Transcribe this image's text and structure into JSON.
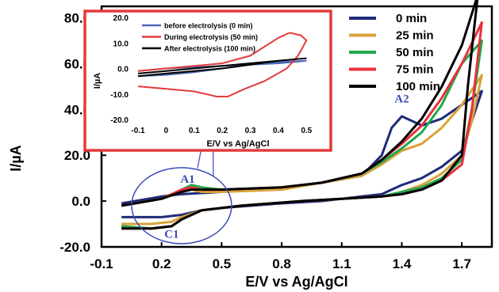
{
  "colors": {
    "black": "#000000",
    "blue": "#1f2a78",
    "orange": "#d9a23a",
    "green": "#1fa84f",
    "red": "#e8313a",
    "annotation": "#3c4bb8",
    "inset_border": "#e33b3b",
    "inset_blue": "#4a67b4",
    "inset_red": "#e33b3b"
  },
  "chart_data": [
    {
      "type": "line",
      "xlabel": "E/V vs Ag/AgCl",
      "ylabel": "I/µA",
      "xlim": [
        -0.1,
        1.85
      ],
      "ylim": [
        -20,
        85
      ],
      "xticks": [
        "-0.1",
        "0.2",
        "0.5",
        "0.8",
        "1.1",
        "1.4",
        "1.7"
      ],
      "yticks": [
        "-20.0",
        "0.0",
        "20.0",
        "40.0",
        "60.0",
        "80.0"
      ],
      "legend_position": "top-right",
      "annotations": [
        {
          "text": "A1",
          "x": 0.33,
          "y": 8
        },
        {
          "text": "C1",
          "x": 0.25,
          "y": -16
        },
        {
          "text": "A2",
          "x": 1.4,
          "y": 43
        }
      ],
      "series": [
        {
          "name": "0 min",
          "color": "blue",
          "forward": [
            [
              0.0,
              -1
            ],
            [
              0.2,
              2
            ],
            [
              0.3,
              3
            ],
            [
              0.5,
              4
            ],
            [
              0.8,
              6
            ],
            [
              1.0,
              8
            ],
            [
              1.2,
              11
            ],
            [
              1.3,
              20
            ],
            [
              1.35,
              32
            ],
            [
              1.4,
              37
            ],
            [
              1.45,
              35
            ],
            [
              1.5,
              33
            ],
            [
              1.6,
              36
            ],
            [
              1.7,
              42
            ],
            [
              1.8,
              48
            ]
          ],
          "reverse": [
            [
              1.8,
              48
            ],
            [
              1.75,
              35
            ],
            [
              1.7,
              22
            ],
            [
              1.6,
              15
            ],
            [
              1.5,
              10
            ],
            [
              1.4,
              7
            ],
            [
              1.3,
              3
            ],
            [
              1.2,
              2
            ],
            [
              1.0,
              0
            ],
            [
              0.8,
              -1
            ],
            [
              0.5,
              -3
            ],
            [
              0.4,
              -4
            ],
            [
              0.3,
              -6
            ],
            [
              0.2,
              -7
            ],
            [
              0.0,
              -7
            ]
          ]
        },
        {
          "name": "25 min",
          "color": "orange",
          "forward": [
            [
              0.0,
              -2
            ],
            [
              0.2,
              1
            ],
            [
              0.3,
              4
            ],
            [
              0.35,
              5
            ],
            [
              0.4,
              4
            ],
            [
              0.5,
              4
            ],
            [
              0.8,
              5
            ],
            [
              1.0,
              8
            ],
            [
              1.2,
              11
            ],
            [
              1.3,
              16
            ],
            [
              1.4,
              22
            ],
            [
              1.5,
              25
            ],
            [
              1.6,
              32
            ],
            [
              1.7,
              42
            ],
            [
              1.8,
              55
            ]
          ],
          "reverse": [
            [
              1.8,
              55
            ],
            [
              1.75,
              35
            ],
            [
              1.7,
              20
            ],
            [
              1.6,
              12
            ],
            [
              1.5,
              7
            ],
            [
              1.4,
              4
            ],
            [
              1.3,
              2
            ],
            [
              1.1,
              1
            ],
            [
              0.9,
              0
            ],
            [
              0.6,
              -2
            ],
            [
              0.4,
              -4
            ],
            [
              0.3,
              -7
            ],
            [
              0.25,
              -9
            ],
            [
              0.15,
              -10
            ],
            [
              0.0,
              -10
            ]
          ]
        },
        {
          "name": "50 min",
          "color": "green",
          "forward": [
            [
              0.0,
              -2
            ],
            [
              0.2,
              1
            ],
            [
              0.3,
              5
            ],
            [
              0.35,
              7
            ],
            [
              0.4,
              6
            ],
            [
              0.5,
              5
            ],
            [
              0.8,
              6
            ],
            [
              1.0,
              8
            ],
            [
              1.2,
              12
            ],
            [
              1.3,
              17
            ],
            [
              1.4,
              23
            ],
            [
              1.5,
              30
            ],
            [
              1.6,
              42
            ],
            [
              1.7,
              60
            ],
            [
              1.8,
              70
            ]
          ],
          "reverse": [
            [
              1.8,
              70
            ],
            [
              1.75,
              40
            ],
            [
              1.7,
              18
            ],
            [
              1.6,
              10
            ],
            [
              1.5,
              6
            ],
            [
              1.4,
              4
            ],
            [
              1.3,
              2
            ],
            [
              1.1,
              1
            ],
            [
              0.9,
              0
            ],
            [
              0.6,
              -2
            ],
            [
              0.4,
              -4
            ],
            [
              0.3,
              -8
            ],
            [
              0.25,
              -11
            ],
            [
              0.15,
              -12
            ],
            [
              0.0,
              -11
            ]
          ]
        },
        {
          "name": "75 min",
          "color": "red",
          "forward": [
            [
              0.0,
              -2
            ],
            [
              0.2,
              1
            ],
            [
              0.3,
              5
            ],
            [
              0.35,
              6
            ],
            [
              0.4,
              5
            ],
            [
              0.5,
              5
            ],
            [
              0.8,
              6
            ],
            [
              1.0,
              8
            ],
            [
              1.2,
              12
            ],
            [
              1.3,
              18
            ],
            [
              1.4,
              25
            ],
            [
              1.5,
              33
            ],
            [
              1.6,
              45
            ],
            [
              1.7,
              60
            ],
            [
              1.8,
              78
            ]
          ],
          "reverse": [
            [
              1.8,
              78
            ],
            [
              1.75,
              40
            ],
            [
              1.7,
              16
            ],
            [
              1.6,
              9
            ],
            [
              1.5,
              5
            ],
            [
              1.4,
              3
            ],
            [
              1.3,
              2
            ],
            [
              1.1,
              1
            ],
            [
              0.9,
              0
            ],
            [
              0.6,
              -2
            ],
            [
              0.4,
              -4
            ],
            [
              0.3,
              -8
            ],
            [
              0.25,
              -11
            ],
            [
              0.15,
              -12
            ],
            [
              0.0,
              -12
            ]
          ]
        },
        {
          "name": "100 min",
          "color": "black",
          "forward": [
            [
              0.0,
              -2
            ],
            [
              0.2,
              1
            ],
            [
              0.3,
              4
            ],
            [
              0.35,
              5
            ],
            [
              0.4,
              5
            ],
            [
              0.5,
              5
            ],
            [
              0.8,
              6
            ],
            [
              1.0,
              8
            ],
            [
              1.2,
              12
            ],
            [
              1.3,
              18
            ],
            [
              1.4,
              26
            ],
            [
              1.5,
              36
            ],
            [
              1.6,
              50
            ],
            [
              1.7,
              68
            ],
            [
              1.78,
              90
            ]
          ],
          "reverse": [
            [
              1.78,
              90
            ],
            [
              1.73,
              50
            ],
            [
              1.7,
              20
            ],
            [
              1.6,
              9
            ],
            [
              1.5,
              5
            ],
            [
              1.4,
              3
            ],
            [
              1.3,
              2
            ],
            [
              1.1,
              1
            ],
            [
              0.9,
              0
            ],
            [
              0.6,
              -2
            ],
            [
              0.4,
              -4
            ],
            [
              0.3,
              -8
            ],
            [
              0.25,
              -11
            ],
            [
              0.15,
              -12
            ],
            [
              0.0,
              -12
            ]
          ]
        }
      ]
    },
    {
      "type": "line",
      "xlabel": "E/V vs Ag/AgCl",
      "ylabel": "I/µA",
      "xlim": [
        -0.1,
        0.55
      ],
      "ylim": [
        -20,
        20
      ],
      "xticks": [
        "-0.1",
        "0",
        "0.1",
        "0.2",
        "0.3",
        "0.4",
        "0.5"
      ],
      "yticks": [
        "20.0",
        "10.0",
        "0.0",
        "-10.0",
        "-20.0"
      ],
      "legend_position": "top-left",
      "series": [
        {
          "name": "before electrolysis (0 min)",
          "color": "inset_blue",
          "forward": [
            [
              -0.1,
              -1
            ],
            [
              0.0,
              0
            ],
            [
              0.1,
              0.5
            ],
            [
              0.2,
              1
            ],
            [
              0.3,
              1.5
            ],
            [
              0.4,
              2
            ],
            [
              0.5,
              3
            ]
          ],
          "reverse": [
            [
              0.5,
              3
            ],
            [
              0.4,
              2.5
            ],
            [
              0.3,
              1.5
            ],
            [
              0.2,
              0
            ],
            [
              0.1,
              -1.5
            ],
            [
              0.0,
              -2.5
            ],
            [
              -0.1,
              -3
            ]
          ]
        },
        {
          "name": "During electrolysis (50 min)",
          "color": "inset_red",
          "forward": [
            [
              -0.1,
              -1
            ],
            [
              0.0,
              0
            ],
            [
              0.1,
              1
            ],
            [
              0.2,
              2
            ],
            [
              0.3,
              5
            ],
            [
              0.4,
              12
            ],
            [
              0.44,
              14
            ],
            [
              0.48,
              13
            ],
            [
              0.5,
              11
            ]
          ],
          "reverse": [
            [
              0.5,
              11
            ],
            [
              0.47,
              5
            ],
            [
              0.43,
              0
            ],
            [
              0.35,
              -5
            ],
            [
              0.28,
              -8
            ],
            [
              0.22,
              -11
            ],
            [
              0.18,
              -11
            ],
            [
              0.1,
              -9
            ],
            [
              0.0,
              -8
            ],
            [
              -0.1,
              -7
            ]
          ]
        },
        {
          "name": "After electrolysis (100 min)",
          "color": "black",
          "forward": [
            [
              -0.1,
              -2
            ],
            [
              0.0,
              -1
            ],
            [
              0.1,
              0
            ],
            [
              0.2,
              1
            ],
            [
              0.3,
              2
            ],
            [
              0.4,
              3
            ],
            [
              0.5,
              4
            ]
          ],
          "reverse": [
            [
              0.5,
              4
            ],
            [
              0.4,
              3
            ],
            [
              0.3,
              1.5
            ],
            [
              0.2,
              0
            ],
            [
              0.1,
              -1
            ],
            [
              0.0,
              -2
            ],
            [
              -0.1,
              -3
            ]
          ]
        }
      ]
    }
  ]
}
